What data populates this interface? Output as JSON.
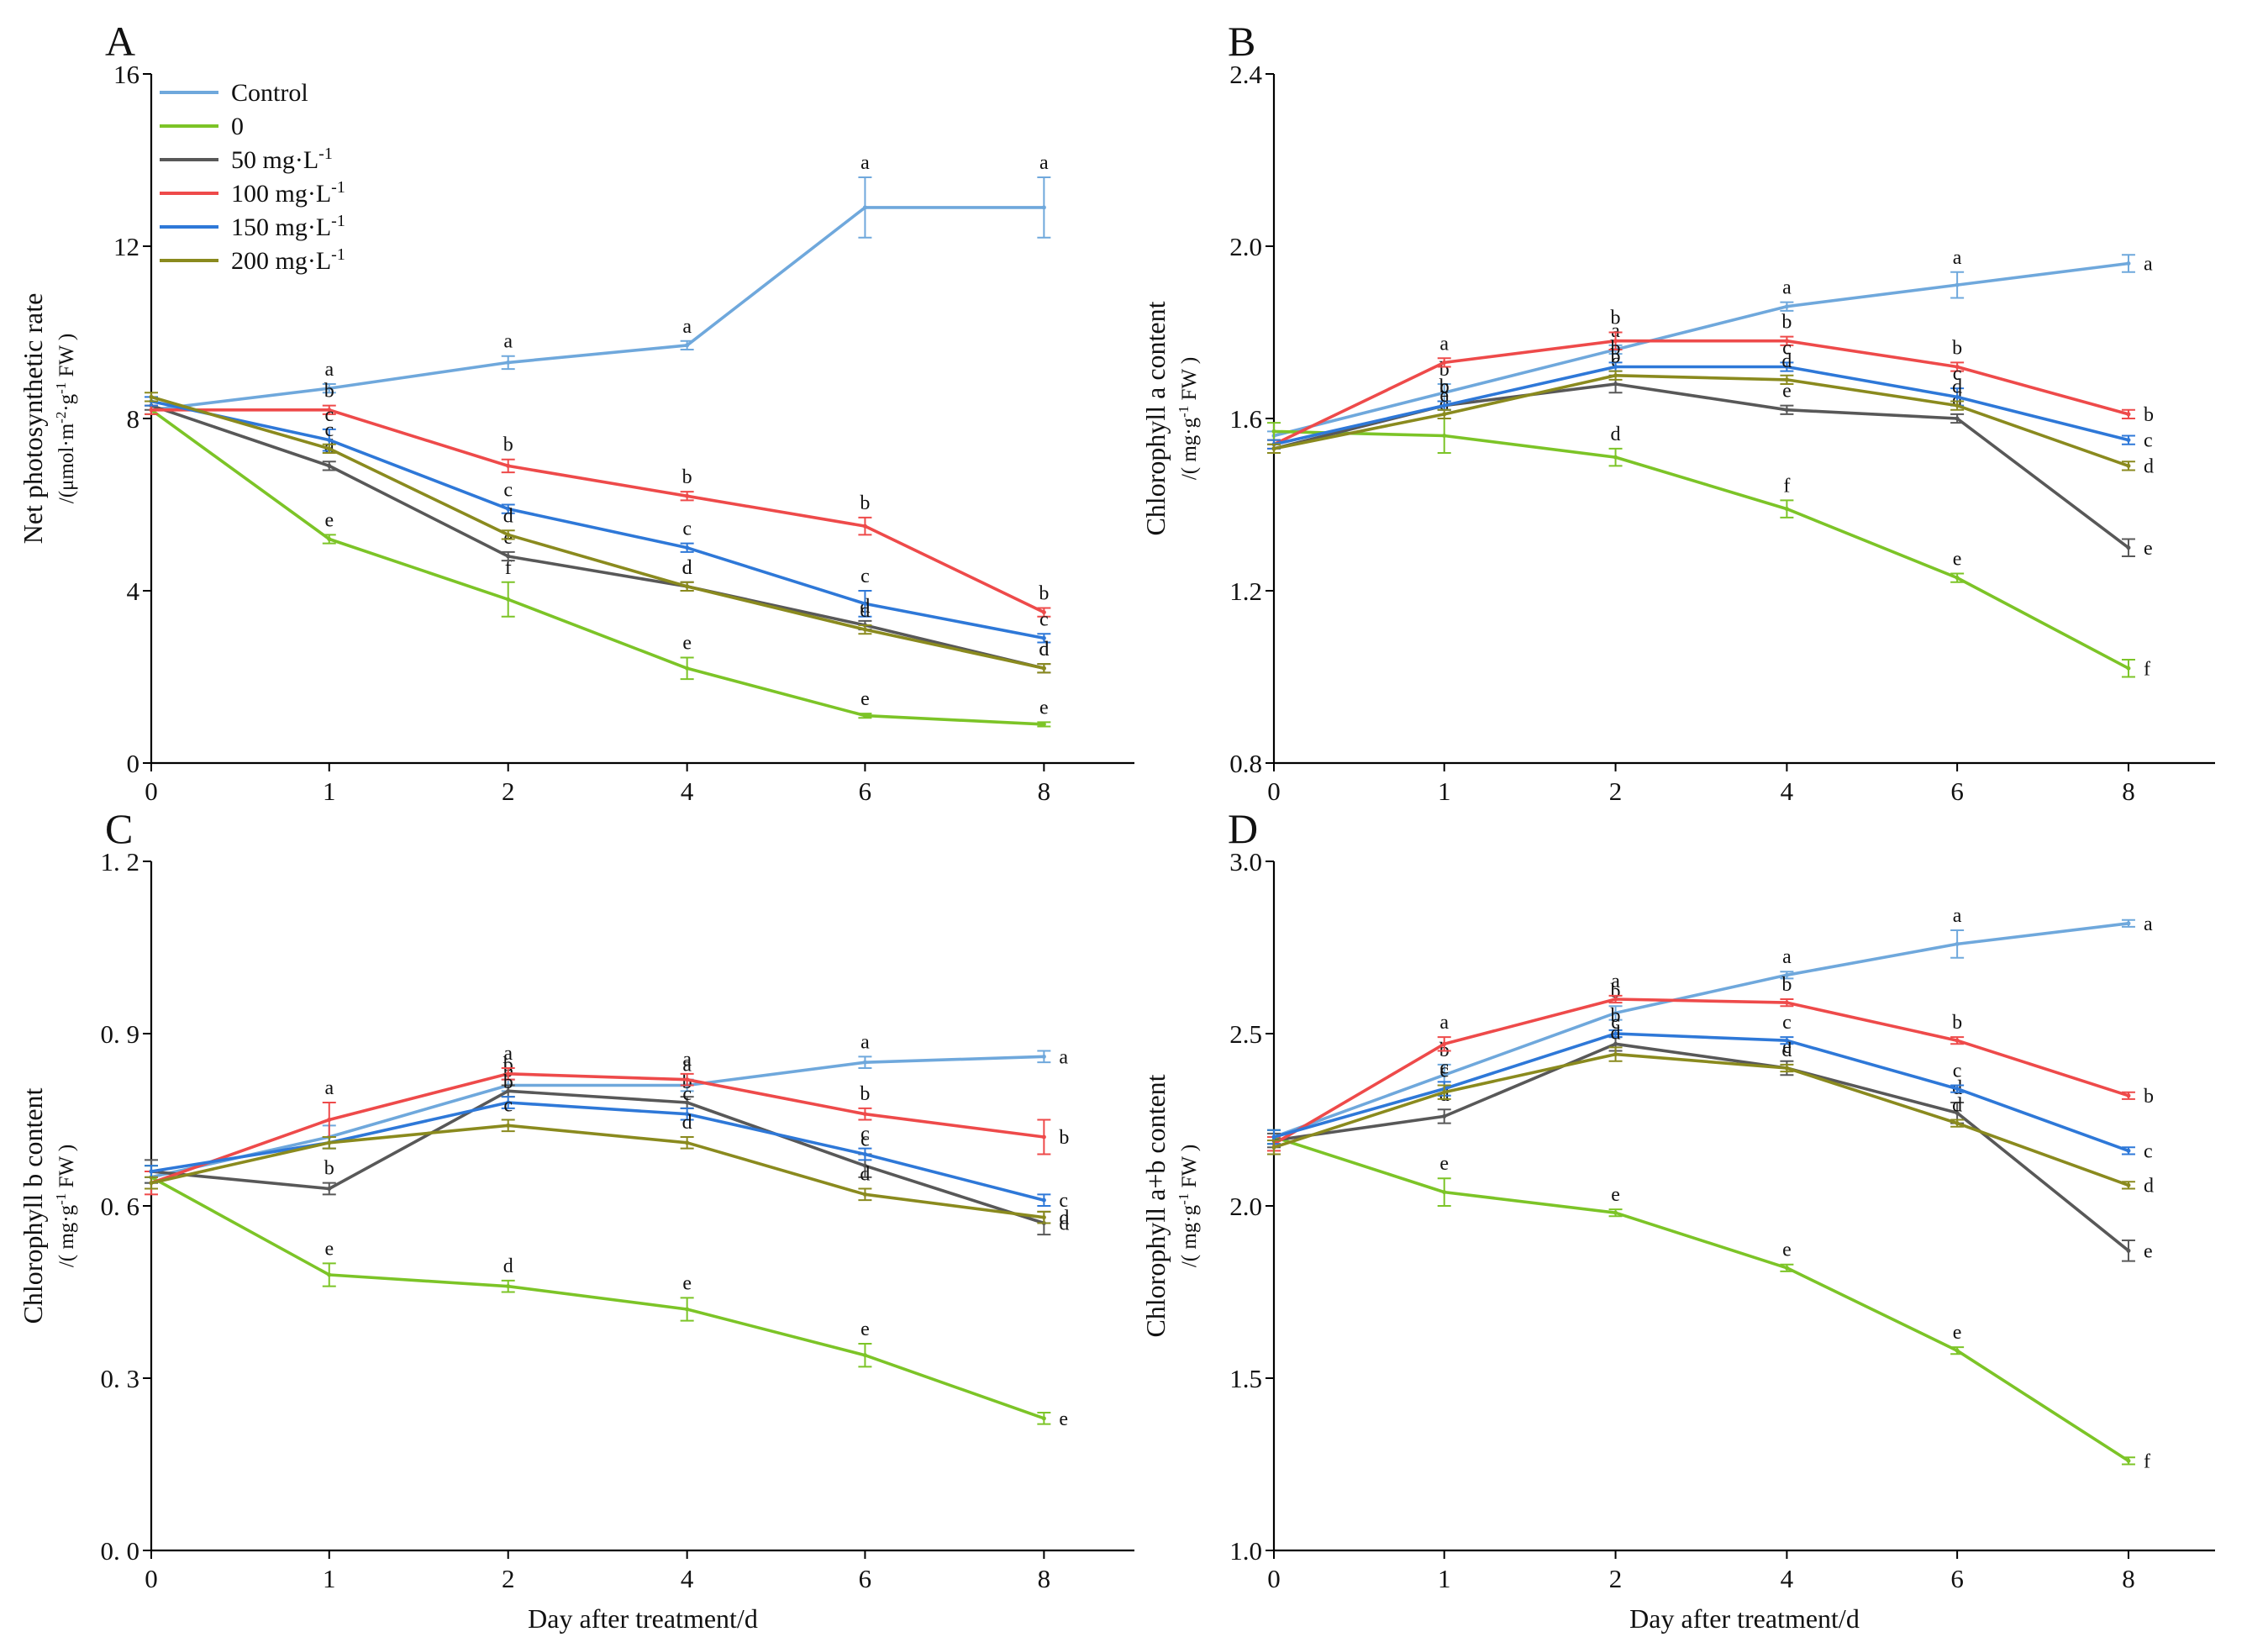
{
  "figure": {
    "x_ticks": [
      "0",
      "1",
      "2",
      "4",
      "6",
      "8"
    ],
    "xlabel": "Day after treatment/d",
    "legend": [
      {
        "key": "control",
        "label": "Control"
      },
      {
        "key": "zero",
        "label": "0"
      },
      {
        "key": "c50",
        "label": "50 mg·L",
        "sup": "-1"
      },
      {
        "key": "c100",
        "label": "100 mg·L",
        "sup": "-1"
      },
      {
        "key": "c150",
        "label": "150 mg·L",
        "sup": "-1"
      },
      {
        "key": "c200",
        "label": "200 mg·L",
        "sup": "-1"
      }
    ]
  },
  "colors": {
    "control": "#6fa8dc",
    "zero": "#7cc427",
    "c50": "#585858",
    "c100": "#ee4a4a",
    "c150": "#2e78d8",
    "c200": "#8a8a1e"
  },
  "chart_data": [
    {
      "type": "line",
      "panel": "A",
      "ylabel": "Net photosynthetic rate",
      "yunit_parts": [
        {
          "t": "/(μmol·m"
        },
        {
          "t": "-2",
          "sup": true
        },
        {
          "t": "·g"
        },
        {
          "t": "-1",
          "sup": true
        },
        {
          "t": " FW )"
        }
      ],
      "ylim": [
        0,
        16
      ],
      "yticks": [
        0,
        4,
        8,
        12,
        16
      ],
      "ytick_labels": [
        "0",
        "4",
        "8",
        "12",
        "16"
      ],
      "show_legend": true,
      "series": [
        {
          "key": "control",
          "values": [
            8.2,
            8.7,
            9.3,
            9.7,
            12.9,
            12.9
          ],
          "errors": [
            0.1,
            0.1,
            0.15,
            0.1,
            0.7,
            0.7
          ],
          "letters": [
            "",
            "a",
            "a",
            "a",
            "a",
            "a"
          ]
        },
        {
          "key": "zero",
          "values": [
            8.2,
            5.2,
            3.8,
            2.2,
            1.1,
            0.9
          ],
          "errors": [
            0.1,
            0.1,
            0.4,
            0.25,
            0.05,
            0.05
          ],
          "letters": [
            "",
            "e",
            "f",
            "e",
            "e",
            "e"
          ]
        },
        {
          "key": "c50",
          "values": [
            8.3,
            6.9,
            4.8,
            4.1,
            3.2,
            2.2
          ],
          "errors": [
            0.1,
            0.1,
            0.1,
            0.1,
            0.1,
            0.1
          ],
          "letters": [
            "",
            "d",
            "e",
            "d",
            "d",
            "d"
          ]
        },
        {
          "key": "c100",
          "values": [
            8.2,
            8.2,
            6.9,
            6.2,
            5.5,
            3.5
          ],
          "errors": [
            0.1,
            0.1,
            0.15,
            0.1,
            0.2,
            0.1
          ],
          "letters": [
            "",
            "b",
            "b",
            "b",
            "b",
            "b"
          ]
        },
        {
          "key": "c150",
          "values": [
            8.4,
            7.5,
            5.9,
            5.0,
            3.7,
            2.9
          ],
          "errors": [
            0.1,
            0.25,
            0.1,
            0.1,
            0.3,
            0.1
          ],
          "letters": [
            "",
            "c",
            "c",
            "c",
            "c",
            "c"
          ]
        },
        {
          "key": "c200",
          "values": [
            8.5,
            7.3,
            5.3,
            4.1,
            3.1,
            2.2
          ],
          "errors": [
            0.1,
            0.1,
            0.1,
            0.1,
            0.1,
            0.1
          ],
          "letters": [
            "",
            "c",
            "d",
            "d",
            "d",
            "d"
          ]
        }
      ]
    },
    {
      "type": "line",
      "panel": "B",
      "ylabel": "Chlorophyll a content",
      "yunit_parts": [
        {
          "t": "/( mg·g"
        },
        {
          "t": "-1",
          "sup": true
        },
        {
          "t": " FW )"
        }
      ],
      "ylim": [
        0.8,
        2.4
      ],
      "yticks": [
        0.8,
        1.2,
        1.6,
        2.0,
        2.4
      ],
      "ytick_labels": [
        "0.8",
        "1.2",
        "1.6",
        "2.0",
        "2.4"
      ],
      "show_legend": false,
      "series": [
        {
          "key": "control",
          "values": [
            1.56,
            1.66,
            1.76,
            1.86,
            1.91,
            1.96
          ],
          "errors": [
            0.01,
            0.02,
            0.01,
            0.01,
            0.03,
            0.02
          ],
          "letters": [
            "",
            "b",
            "a",
            "a",
            "a",
            "a"
          ]
        },
        {
          "key": "zero",
          "values": [
            1.57,
            1.56,
            1.51,
            1.39,
            1.23,
            1.02
          ],
          "errors": [
            0.02,
            0.04,
            0.02,
            0.02,
            0.01,
            0.02
          ],
          "letters": [
            "",
            "d",
            "d",
            "f",
            "e",
            "f"
          ]
        },
        {
          "key": "c50",
          "values": [
            1.53,
            1.63,
            1.68,
            1.62,
            1.6,
            1.3
          ],
          "errors": [
            0.01,
            0.01,
            0.02,
            0.01,
            0.01,
            0.02
          ],
          "letters": [
            "",
            "c",
            "c",
            "e",
            "d",
            "e"
          ]
        },
        {
          "key": "c100",
          "values": [
            1.54,
            1.73,
            1.78,
            1.78,
            1.72,
            1.61
          ],
          "errors": [
            0.01,
            0.01,
            0.02,
            0.01,
            0.01,
            0.01
          ],
          "letters": [
            "",
            "a",
            "b",
            "b",
            "b",
            "b"
          ]
        },
        {
          "key": "c150",
          "values": [
            1.54,
            1.63,
            1.72,
            1.72,
            1.65,
            1.55
          ],
          "errors": [
            0.01,
            0.01,
            0.01,
            0.01,
            0.02,
            0.01
          ],
          "letters": [
            "",
            "b",
            "b",
            "c",
            "c",
            "c"
          ]
        },
        {
          "key": "c200",
          "values": [
            1.53,
            1.61,
            1.7,
            1.69,
            1.63,
            1.49
          ],
          "errors": [
            0.01,
            0.01,
            0.01,
            0.01,
            0.01,
            0.01
          ],
          "letters": [
            "",
            "e",
            "b",
            "d",
            "d",
            "d"
          ]
        }
      ]
    },
    {
      "type": "line",
      "panel": "C",
      "ylabel": "Chlorophyll b content",
      "yunit_parts": [
        {
          "t": "/( mg·g"
        },
        {
          "t": "-1",
          "sup": true
        },
        {
          "t": " FW )"
        }
      ],
      "ylim": [
        0.0,
        1.2
      ],
      "yticks": [
        0.0,
        0.3,
        0.6,
        0.9,
        1.2
      ],
      "ytick_labels": [
        "0. 0",
        "0. 3",
        "0. 6",
        "0. 9",
        "1. 2"
      ],
      "show_legend": false,
      "series": [
        {
          "key": "control",
          "values": [
            0.65,
            0.72,
            0.81,
            0.81,
            0.85,
            0.86
          ],
          "errors": [
            0.01,
            0.02,
            0.01,
            0.01,
            0.01,
            0.01
          ],
          "letters": [
            "",
            "",
            "b",
            "a",
            "a",
            "a"
          ]
        },
        {
          "key": "zero",
          "values": [
            0.65,
            0.48,
            0.46,
            0.42,
            0.34,
            0.23
          ],
          "errors": [
            0.02,
            0.02,
            0.01,
            0.02,
            0.02,
            0.01
          ],
          "letters": [
            "",
            "e",
            "d",
            "e",
            "e",
            "e"
          ]
        },
        {
          "key": "c50",
          "values": [
            0.66,
            0.63,
            0.8,
            0.78,
            0.67,
            0.57
          ],
          "errors": [
            0.02,
            0.01,
            0.01,
            0.01,
            0.02,
            0.02
          ],
          "letters": [
            "",
            "b",
            "b",
            "b",
            "c",
            "d"
          ]
        },
        {
          "key": "c100",
          "values": [
            0.64,
            0.75,
            0.83,
            0.82,
            0.76,
            0.72
          ],
          "errors": [
            0.02,
            0.03,
            0.01,
            0.01,
            0.01,
            0.03
          ],
          "letters": [
            "",
            "a",
            "a",
            "a",
            "b",
            "b"
          ]
        },
        {
          "key": "c150",
          "values": [
            0.66,
            0.71,
            0.78,
            0.76,
            0.69,
            0.61
          ],
          "errors": [
            0.01,
            0.01,
            0.01,
            0.01,
            0.01,
            0.01
          ],
          "letters": [
            "",
            "",
            "b",
            "c",
            "c",
            "c"
          ]
        },
        {
          "key": "c200",
          "values": [
            0.64,
            0.71,
            0.74,
            0.71,
            0.62,
            0.58
          ],
          "errors": [
            0.01,
            0.01,
            0.01,
            0.01,
            0.01,
            0.01
          ],
          "letters": [
            "",
            "",
            "c",
            "d",
            "d",
            "d"
          ]
        }
      ]
    },
    {
      "type": "line",
      "panel": "D",
      "ylabel": "Chlorophyll a+b content",
      "yunit_parts": [
        {
          "t": "/( mg·g"
        },
        {
          "t": "-1",
          "sup": true
        },
        {
          "t": " FW )"
        }
      ],
      "ylim": [
        1.0,
        3.0
      ],
      "yticks": [
        1.0,
        1.5,
        2.0,
        2.5,
        3.0
      ],
      "ytick_labels": [
        "1.0",
        "1.5",
        "2.0",
        "2.5",
        "3.0"
      ],
      "show_legend": false,
      "series": [
        {
          "key": "control",
          "values": [
            2.2,
            2.38,
            2.56,
            2.67,
            2.76,
            2.82
          ],
          "errors": [
            0.02,
            0.03,
            0.02,
            0.01,
            0.04,
            0.01
          ],
          "letters": [
            "",
            "b",
            "b",
            "a",
            "a",
            "a"
          ]
        },
        {
          "key": "zero",
          "values": [
            2.2,
            2.04,
            1.98,
            1.82,
            1.58,
            1.26
          ],
          "errors": [
            0.02,
            0.04,
            0.01,
            0.01,
            0.01,
            0.01
          ],
          "letters": [
            "",
            "e",
            "e",
            "e",
            "e",
            "f"
          ]
        },
        {
          "key": "c50",
          "values": [
            2.19,
            2.26,
            2.47,
            2.4,
            2.27,
            1.87
          ],
          "errors": [
            0.02,
            0.02,
            0.02,
            0.02,
            0.03,
            0.03
          ],
          "letters": [
            "",
            "d",
            "c",
            "e",
            "d",
            "e"
          ]
        },
        {
          "key": "c100",
          "values": [
            2.18,
            2.47,
            2.6,
            2.59,
            2.48,
            2.32
          ],
          "errors": [
            0.02,
            0.02,
            0.01,
            0.01,
            0.01,
            0.01
          ],
          "letters": [
            "",
            "a",
            "a",
            "b",
            "b",
            "b"
          ]
        },
        {
          "key": "c150",
          "values": [
            2.2,
            2.34,
            2.5,
            2.48,
            2.34,
            2.16
          ],
          "errors": [
            0.02,
            0.02,
            0.01,
            0.01,
            0.01,
            0.01
          ],
          "letters": [
            "",
            "c",
            "b",
            "c",
            "c",
            "c"
          ]
        },
        {
          "key": "c200",
          "values": [
            2.17,
            2.33,
            2.44,
            2.4,
            2.24,
            2.06
          ],
          "errors": [
            0.02,
            0.02,
            0.02,
            0.01,
            0.01,
            0.01
          ],
          "letters": [
            "",
            "c",
            "d",
            "d",
            "d",
            "d"
          ]
        }
      ]
    }
  ]
}
